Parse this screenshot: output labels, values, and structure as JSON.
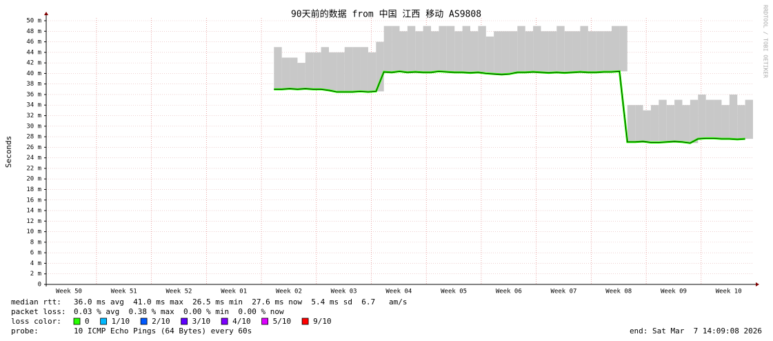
{
  "chart_data": {
    "type": "smokeping",
    "title": "90天前的数据 from  中国 江西 移动 AS9808",
    "y_label": "Seconds",
    "watermark": "RRDTOOL / TOBI OETIKER",
    "xlim": [
      0,
      90
    ],
    "xticks": [
      {
        "value": 2.9,
        "label": "Week 50"
      },
      {
        "value": 9.9,
        "label": "Week 51"
      },
      {
        "value": 16.9,
        "label": "Week 52"
      },
      {
        "value": 23.9,
        "label": "Week 01"
      },
      {
        "value": 30.9,
        "label": "Week 02"
      },
      {
        "value": 37.9,
        "label": "Week 03"
      },
      {
        "value": 44.9,
        "label": "Week 04"
      },
      {
        "value": 51.9,
        "label": "Week 05"
      },
      {
        "value": 58.9,
        "label": "Week 06"
      },
      {
        "value": 65.9,
        "label": "Week 07"
      },
      {
        "value": 72.9,
        "label": "Week 08"
      },
      {
        "value": 79.9,
        "label": "Week 09"
      },
      {
        "value": 86.9,
        "label": "Week 10"
      }
    ],
    "ylim": [
      0,
      50
    ],
    "yticks": [
      0,
      {
        "value": 2,
        "label": "2 m"
      },
      {
        "value": 4,
        "label": "4 m"
      },
      {
        "value": 6,
        "label": "6 m"
      },
      {
        "value": 8,
        "label": "8 m"
      },
      {
        "value": 10,
        "label": "10 m"
      },
      {
        "value": 12,
        "label": "12 m"
      },
      {
        "value": 14,
        "label": "14 m"
      },
      {
        "value": 16,
        "label": "16 m"
      },
      {
        "value": 18,
        "label": "18 m"
      },
      {
        "value": 20,
        "label": "20 m"
      },
      {
        "value": 22,
        "label": "22 m"
      },
      {
        "value": 24,
        "label": "24 m"
      },
      {
        "value": 26,
        "label": "26 m"
      },
      {
        "value": 28,
        "label": "28 m"
      },
      {
        "value": 30,
        "label": "30 m"
      },
      {
        "value": 32,
        "label": "32 m"
      },
      {
        "value": 34,
        "label": "34 m"
      },
      {
        "value": 36,
        "label": "36 m"
      },
      {
        "value": 38,
        "label": "38 m"
      },
      {
        "value": 40,
        "label": "40 m"
      },
      {
        "value": 42,
        "label": "42 m"
      },
      {
        "value": 44,
        "label": "44 m"
      },
      {
        "value": 46,
        "label": "46 m"
      },
      {
        "value": 48,
        "label": "48 m"
      },
      {
        "value": 50,
        "label": "50 m"
      }
    ],
    "grid": true,
    "x": [
      29,
      30,
      31,
      32,
      33,
      34,
      35,
      36,
      37,
      38,
      39,
      40,
      41,
      42,
      43,
      44,
      45,
      46,
      47,
      48,
      49,
      50,
      51,
      52,
      53,
      54,
      55,
      56,
      57,
      58,
      59,
      60,
      61,
      62,
      63,
      64,
      65,
      66,
      67,
      68,
      69,
      70,
      71,
      72,
      73,
      74,
      75,
      76,
      77,
      78,
      79,
      80,
      81,
      82,
      83,
      84,
      85,
      86,
      87,
      88,
      89
    ],
    "values": [
      37.0,
      37.0,
      37.1,
      37.0,
      37.1,
      37.0,
      37.0,
      36.8,
      36.5,
      36.5,
      36.5,
      36.6,
      36.5,
      36.6,
      40.3,
      40.2,
      40.4,
      40.2,
      40.3,
      40.2,
      40.2,
      40.4,
      40.3,
      40.2,
      40.2,
      40.1,
      40.2,
      40.0,
      39.9,
      39.8,
      39.9,
      40.2,
      40.2,
      40.3,
      40.2,
      40.1,
      40.2,
      40.1,
      40.2,
      40.3,
      40.2,
      40.2,
      40.3,
      40.3,
      40.4,
      27.0,
      27.0,
      27.1,
      26.9,
      26.9,
      27.0,
      27.1,
      27.0,
      26.8,
      27.6,
      27.7,
      27.7,
      27.6,
      27.6,
      27.5,
      27.6
    ],
    "high": [
      45,
      43,
      43,
      42,
      44,
      44,
      45,
      44,
      44,
      45,
      45,
      45,
      44,
      46,
      49,
      49,
      48,
      49,
      48,
      49,
      48,
      49,
      49,
      48,
      49,
      48,
      49,
      47,
      48,
      48,
      48,
      49,
      48,
      49,
      48,
      48,
      49,
      48,
      48,
      49,
      48,
      48,
      48,
      49,
      49,
      34,
      34,
      33,
      34,
      35,
      34,
      35,
      34,
      35,
      36,
      35,
      35,
      34,
      36,
      34,
      35
    ],
    "color": "#26ff00",
    "smoke_color": "#c8c8c8",
    "footer": {
      "median_label": "median rtt:",
      "median_text": "36.0 ms avg  41.0 ms max  26.5 ms min  27.6 ms now  5.4 ms sd  6.7   am/s",
      "loss_label": "packet loss:",
      "loss_text": "0.03 % avg  0.38 % max  0.00 % min  0.00 % now",
      "color_label": "loss color:",
      "probe_label": "probe:",
      "probe_text": "10 ICMP Echo Pings (64 Bytes) every 60s",
      "end_text": "end: Sat Mar  7 14:09:08 2026"
    },
    "loss_colors": [
      {
        "label": "0",
        "color": "#26ff00"
      },
      {
        "label": "1/10",
        "color": "#00b8ff"
      },
      {
        "label": "2/10",
        "color": "#0059ff"
      },
      {
        "label": "3/10",
        "color": "#5e00ff"
      },
      {
        "label": "4/10",
        "color": "#7e00ff"
      },
      {
        "label": "5/10",
        "color": "#dd00ff"
      },
      {
        "label": "9/10",
        "color": "#ff0000"
      }
    ]
  }
}
